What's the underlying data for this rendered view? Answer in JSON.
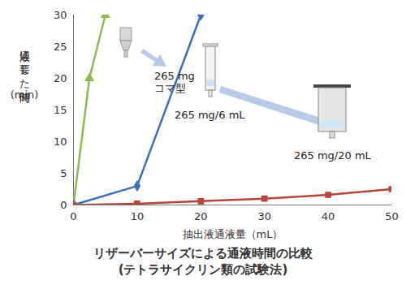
{
  "chart_data": {
    "type": "line",
    "title": "リザーバーサイズによる通液時間の比較",
    "subtitle": "(テトラサイクリン類の試験法)",
    "x_label": "抽出液通液量（mL）",
    "y_label": "通液に要した時間(min)",
    "xlim": [
      0,
      50
    ],
    "xticks": [
      0,
      10,
      20,
      30,
      40,
      50
    ],
    "ylim": [
      0,
      30
    ],
    "yticks": [
      0,
      5,
      10,
      15,
      20,
      25,
      30
    ],
    "grid": false,
    "series": [
      {
        "name": "265 mg\nコマ型",
        "color": "#8dbb4c",
        "marker": "triangle",
        "line_style": "solid",
        "x": [
          0,
          2.5,
          5
        ],
        "values": [
          0,
          20,
          30
        ]
      },
      {
        "name": "265 mg/6 mL",
        "color": "#3b6fc0",
        "marker": "diamond",
        "line_style": "solid",
        "x": [
          0,
          10,
          20
        ],
        "values": [
          0,
          3,
          30
        ]
      },
      {
        "name": "265 mg/20 mL",
        "color": "#b8433b",
        "marker": "square",
        "line_style": "solid",
        "x": [
          0,
          10,
          20,
          30,
          40,
          50
        ],
        "values": [
          0,
          0.2,
          0.6,
          1.0,
          1.6,
          2.5
        ]
      }
    ]
  }
}
